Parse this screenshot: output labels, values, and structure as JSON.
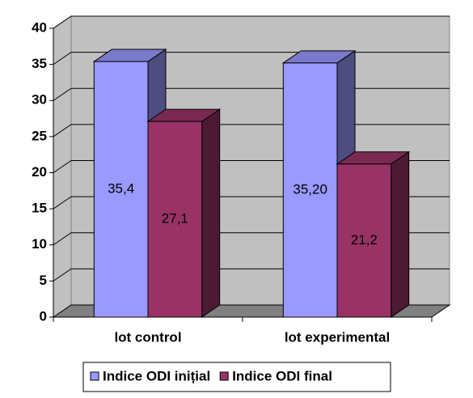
{
  "chart_data": {
    "type": "bar3d",
    "categories": [
      "lot control",
      "lot experimental"
    ],
    "series": [
      {
        "name": "Indice ODI inițial",
        "color": "#9999ff",
        "values": [
          35.4,
          35.2
        ],
        "value_labels": [
          "35,4",
          "35,20"
        ]
      },
      {
        "name": "Indice ODI final",
        "color": "#993366",
        "values": [
          27.1,
          21.2
        ],
        "value_labels": [
          "27,1",
          "21,2"
        ]
      }
    ],
    "ylim": [
      0,
      40
    ],
    "yticks": [
      0,
      5,
      10,
      15,
      20,
      25,
      30,
      35,
      40
    ],
    "grid": true,
    "legend": "bottom"
  }
}
